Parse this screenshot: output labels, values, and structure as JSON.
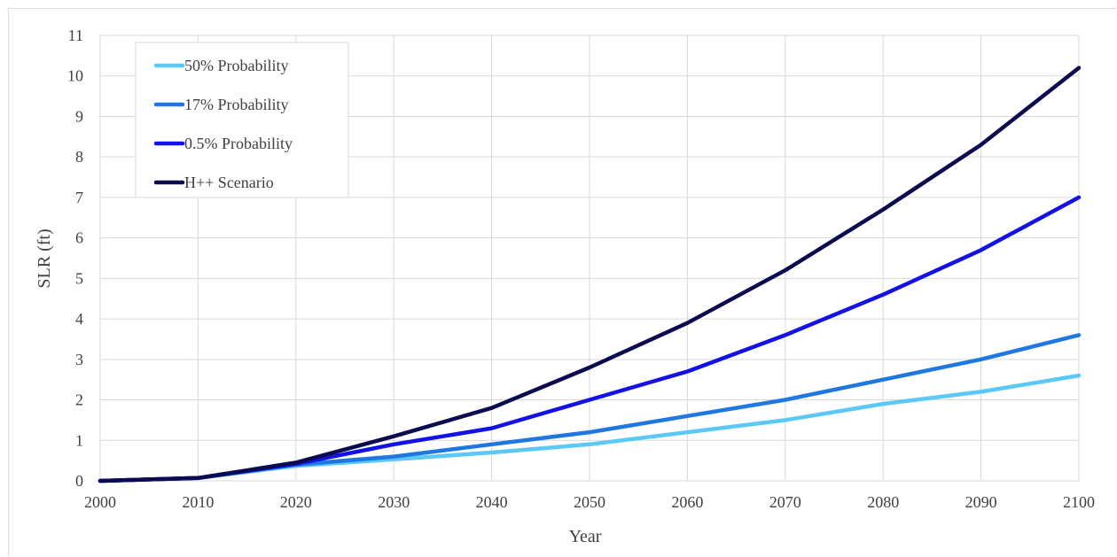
{
  "chart_data": {
    "type": "line",
    "title": "",
    "xlabel": "Year",
    "ylabel": "SLR (ft)",
    "x": [
      2000,
      2010,
      2020,
      2030,
      2040,
      2050,
      2060,
      2070,
      2080,
      2090,
      2100
    ],
    "xlim": [
      2000,
      2100
    ],
    "ylim": [
      0,
      11
    ],
    "x_ticks": [
      "2000",
      "2010",
      "2020",
      "2030",
      "2040",
      "2050",
      "2060",
      "2070",
      "2080",
      "2090",
      "2100"
    ],
    "y_ticks": [
      "0",
      "1",
      "2",
      "3",
      "4",
      "5",
      "6",
      "7",
      "8",
      "9",
      "10",
      "11"
    ],
    "grid": true,
    "legend_position": "top-left",
    "series": [
      {
        "name": "50% Probability",
        "color": "#5bc8f5",
        "values": [
          0,
          0.07,
          0.37,
          0.53,
          0.7,
          0.9,
          1.2,
          1.5,
          1.9,
          2.2,
          2.6
        ]
      },
      {
        "name": "17% Probability",
        "color": "#1f78e0",
        "values": [
          0,
          0.07,
          0.4,
          0.6,
          0.9,
          1.2,
          1.6,
          2.0,
          2.5,
          3.0,
          3.6
        ]
      },
      {
        "name": "0.5% Probability",
        "color": "#1212e6",
        "values": [
          0,
          0.07,
          0.42,
          0.9,
          1.3,
          2.0,
          2.7,
          3.6,
          4.6,
          5.7,
          7.0
        ]
      },
      {
        "name": "H++ Scenario",
        "color": "#0b0b4f",
        "values": [
          0,
          0.07,
          0.45,
          1.1,
          1.8,
          2.8,
          3.9,
          5.2,
          6.7,
          8.3,
          10.2
        ]
      }
    ]
  }
}
